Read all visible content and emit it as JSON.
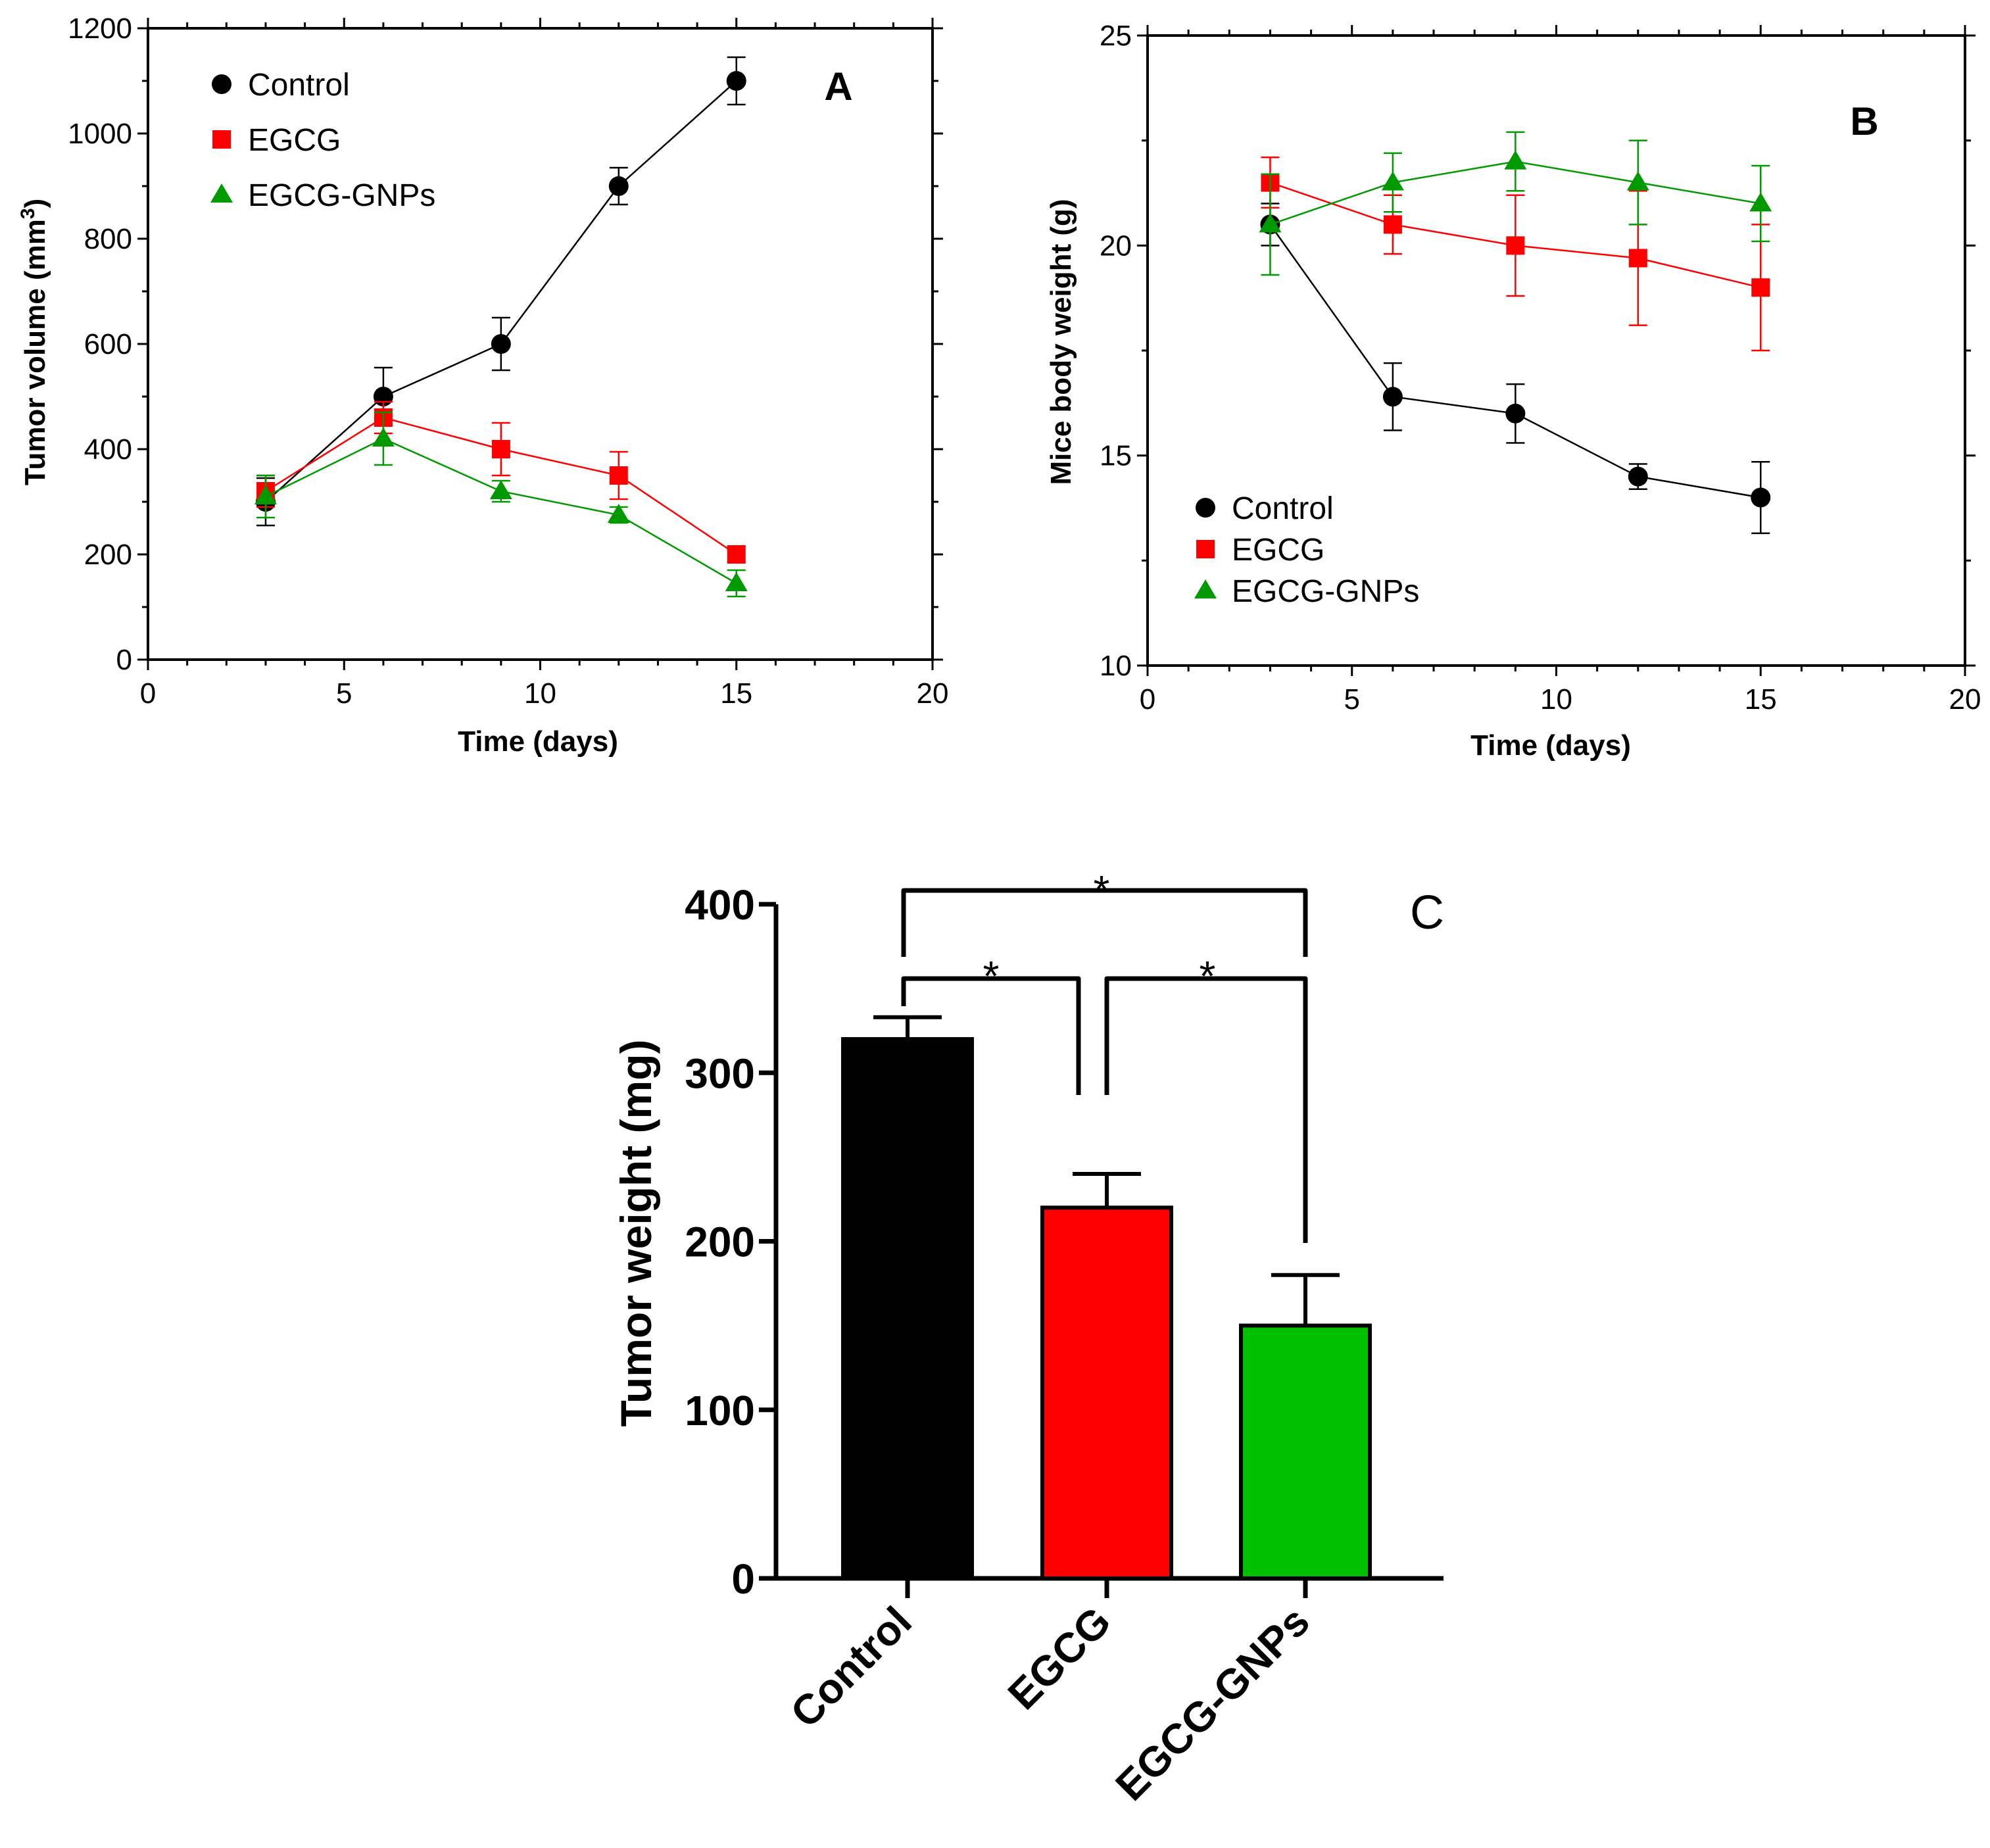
{
  "chart_data": [
    {
      "panel": "A",
      "type": "line",
      "xlabel": "Time (days)",
      "ylabel": "Tumor volume (mm",
      "ylabel_sup": "3",
      "ylabel_close": ")",
      "xlim": [
        0,
        20
      ],
      "ylim": [
        0,
        1200
      ],
      "xticks": [
        "0",
        "5",
        "10",
        "15",
        "20"
      ],
      "yticks": [
        "0",
        "200",
        "400",
        "600",
        "800",
        "1000",
        "1200"
      ],
      "x": [
        3,
        6,
        9,
        12,
        15
      ],
      "legend_position": "top-left",
      "series": [
        {
          "name": "Control",
          "marker": "circle",
          "color": "#000000",
          "values": [
            300,
            500,
            600,
            900,
            1100
          ],
          "errors": [
            45,
            55,
            50,
            35,
            45
          ]
        },
        {
          "name": "EGCG",
          "marker": "square",
          "color": "#ff0000",
          "values": [
            320,
            460,
            400,
            350,
            200
          ],
          "errors": [
            30,
            30,
            50,
            45,
            15
          ]
        },
        {
          "name": "EGCG-GNPs",
          "marker": "triangle",
          "color": "#009900",
          "values": [
            310,
            420,
            320,
            275,
            145
          ],
          "errors": [
            40,
            50,
            20,
            15,
            25
          ]
        }
      ]
    },
    {
      "panel": "B",
      "type": "line",
      "xlabel": "Time (days)",
      "ylabel": "Mice body weight (g)",
      "xlim": [
        0,
        20
      ],
      "ylim": [
        10,
        25
      ],
      "xticks": [
        "0",
        "5",
        "10",
        "15",
        "20"
      ],
      "yticks": [
        "10",
        "15",
        "20",
        "25"
      ],
      "x": [
        3,
        6,
        9,
        12,
        15
      ],
      "legend_position": "bottom-left",
      "series": [
        {
          "name": "Control",
          "marker": "circle",
          "color": "#000000",
          "values": [
            20.5,
            16.4,
            16.0,
            14.5,
            14.0
          ],
          "errors": [
            0.5,
            0.8,
            0.7,
            0.3,
            0.85
          ]
        },
        {
          "name": "EGCG",
          "marker": "square",
          "color": "#ff0000",
          "values": [
            21.5,
            20.5,
            20.0,
            19.7,
            19.0
          ],
          "errors": [
            0.6,
            0.7,
            1.2,
            1.6,
            1.5
          ]
        },
        {
          "name": "EGCG-GNPs",
          "marker": "triangle",
          "color": "#009900",
          "values": [
            20.5,
            21.5,
            22.0,
            21.5,
            21.0
          ],
          "errors": [
            1.2,
            0.7,
            0.7,
            1.0,
            0.9
          ]
        }
      ]
    },
    {
      "panel": "C",
      "type": "bar",
      "ylabel": "Tumor weight (mg)",
      "ylim": [
        0,
        400
      ],
      "yticks": [
        "0",
        "100",
        "200",
        "300",
        "400"
      ],
      "categories": [
        "Control",
        "EGCG",
        "EGCG-GNPs"
      ],
      "values": [
        320,
        220,
        150
      ],
      "errors": [
        13,
        20,
        30
      ],
      "colors": [
        "#000000",
        "#ff0000",
        "#00c000"
      ],
      "significance": [
        {
          "from": 0,
          "to": 1,
          "label": "*"
        },
        {
          "from": 1,
          "to": 2,
          "label": "*"
        },
        {
          "from": 0,
          "to": 2,
          "label": "*"
        }
      ]
    }
  ]
}
